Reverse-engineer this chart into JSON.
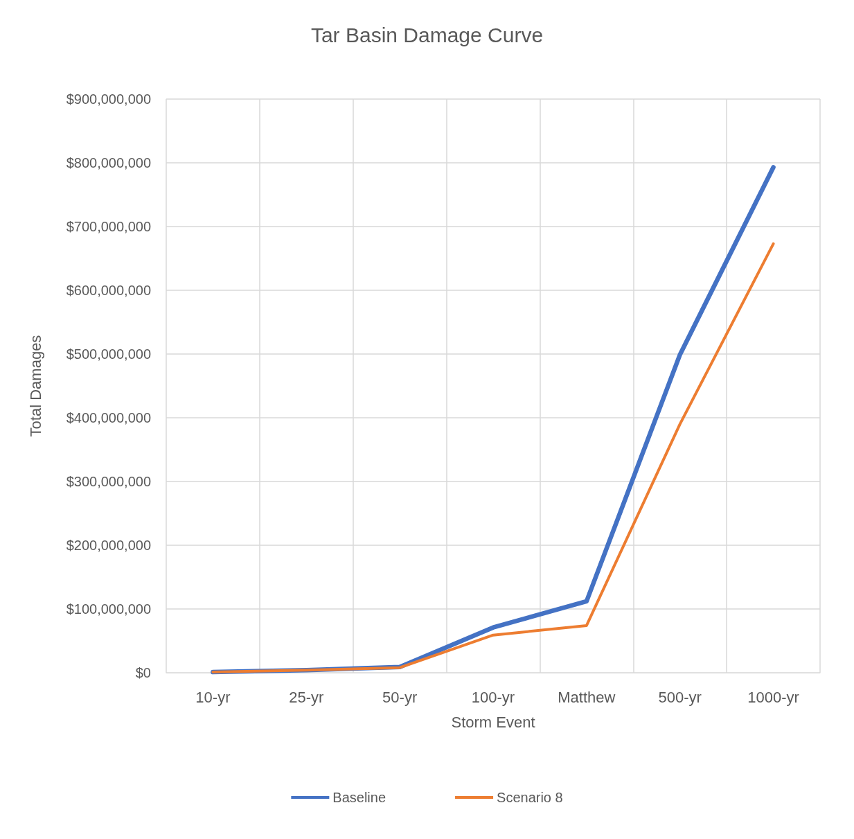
{
  "chart_data": {
    "type": "line",
    "title": "Tar Basin Damage Curve",
    "xlabel": "Storm Event",
    "ylabel": "Total Damages",
    "categories": [
      "10-yr",
      "25-yr",
      "50-yr",
      "100-yr",
      "Matthew",
      "500-yr",
      "1000-yr"
    ],
    "series": [
      {
        "name": "Baseline",
        "color": "#4472c4",
        "values": [
          1000000,
          4000000,
          9000000,
          71000000,
          112000000,
          499000000,
          793000000
        ]
      },
      {
        "name": "Scenario 8",
        "color": "#ed7d31",
        "values": [
          1000000,
          4000000,
          8000000,
          59000000,
          74000000,
          390000000,
          673000000
        ]
      }
    ],
    "ylim": [
      0,
      900000000
    ],
    "yticks": [
      {
        "value": 0,
        "label": "$0"
      },
      {
        "value": 100000000,
        "label": "$100,000,000"
      },
      {
        "value": 200000000,
        "label": "$200,000,000"
      },
      {
        "value": 300000000,
        "label": "$300,000,000"
      },
      {
        "value": 400000000,
        "label": "$400,000,000"
      },
      {
        "value": 500000000,
        "label": "$500,000,000"
      },
      {
        "value": 600000000,
        "label": "$600,000,000"
      },
      {
        "value": 700000000,
        "label": "$700,000,000"
      },
      {
        "value": 800000000,
        "label": "$800,000,000"
      },
      {
        "value": 900000000,
        "label": "$900,000,000"
      }
    ],
    "grid": true,
    "legend": "bottom",
    "marker": "none",
    "line_style": "solid"
  }
}
